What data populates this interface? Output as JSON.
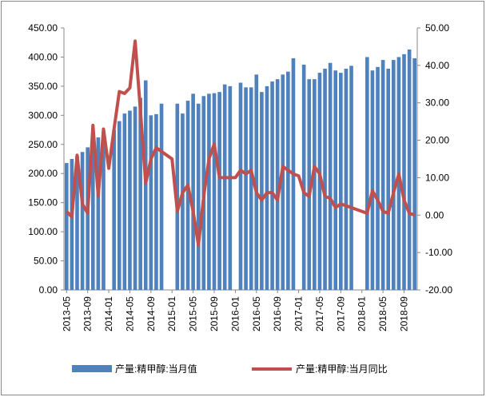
{
  "chart_data": {
    "type": "bar_line",
    "categories": [
      "2013-05",
      null,
      null,
      null,
      "2013-09",
      null,
      null,
      null,
      "2014-01",
      null,
      null,
      null,
      "2014-05",
      null,
      null,
      null,
      "2014-09",
      null,
      null,
      null,
      "2015-01",
      null,
      null,
      null,
      "2015-05",
      null,
      null,
      null,
      "2015-09",
      null,
      null,
      null,
      "2016-01",
      null,
      null,
      null,
      "2016-05",
      null,
      null,
      null,
      "2016-09",
      null,
      null,
      null,
      "2017-01",
      null,
      null,
      null,
      "2017-05",
      null,
      null,
      null,
      "2017-09",
      null,
      null,
      null,
      "2018-01",
      null,
      null,
      null,
      "2018-05",
      null,
      null,
      null,
      "2018-09",
      null,
      null
    ],
    "series": [
      {
        "name": "产量:精甲醇:当月值",
        "color": "#4f81bd",
        "axis": "y",
        "values": [
          218,
          225,
          230,
          237,
          245,
          250,
          262,
          272,
          null,
          275,
          290,
          303,
          308,
          315,
          330,
          360,
          300,
          302,
          320,
          null,
          null,
          320,
          303,
          325,
          337,
          320,
          333,
          337,
          338,
          340,
          353,
          350,
          null,
          356,
          348,
          348,
          370,
          340,
          350,
          358,
          362,
          370,
          375,
          398,
          null,
          387,
          362,
          362,
          373,
          380,
          390,
          377,
          373,
          380,
          385,
          null,
          null,
          400,
          377,
          383,
          395,
          380,
          395,
          400,
          405,
          413,
          398
        ]
      },
      {
        "name": "产量:精甲醇:当月同比",
        "color": "#c0504d",
        "axis": "y2",
        "values": [
          1,
          -0.5,
          16,
          3,
          0.5,
          24,
          5,
          23,
          12.5,
          23,
          33,
          32.5,
          34,
          46.5,
          28,
          8.5,
          15,
          18,
          17,
          16,
          15,
          1,
          6,
          8,
          1,
          -8,
          5,
          15,
          19,
          10,
          10,
          10,
          10,
          12,
          11,
          12,
          6,
          4,
          6,
          6,
          4,
          13,
          12,
          11,
          10.5,
          6,
          5,
          13,
          11,
          5,
          4.5,
          2,
          3,
          2.5,
          2,
          1.5,
          1,
          0.5,
          6.5,
          4,
          1,
          0.5,
          6,
          11,
          4,
          0.5,
          0
        ]
      }
    ],
    "ylim": [
      0,
      450
    ],
    "yticks": [
      {
        "value": 0,
        "label": "0.00"
      },
      {
        "value": 50,
        "label": "50.00"
      },
      {
        "value": 100,
        "label": "100.00"
      },
      {
        "value": 150,
        "label": "150.00"
      },
      {
        "value": 200,
        "label": "200.00"
      },
      {
        "value": 250,
        "label": "250.00"
      },
      {
        "value": 300,
        "label": "300.00"
      },
      {
        "value": 350,
        "label": "350.00"
      },
      {
        "value": 400,
        "label": "400.00"
      },
      {
        "value": 450,
        "label": "450.00"
      }
    ],
    "y2lim": [
      -20,
      50
    ],
    "y2ticks": [
      {
        "value": -20,
        "label": "-20.00"
      },
      {
        "value": -10,
        "label": "-10.00"
      },
      {
        "value": 0,
        "label": "0.00"
      },
      {
        "value": 10,
        "label": "10.00"
      },
      {
        "value": 20,
        "label": "20.00"
      },
      {
        "value": 30,
        "label": "30.00"
      },
      {
        "value": 40,
        "label": "40.00"
      },
      {
        "value": 50,
        "label": "50.00"
      }
    ],
    "legend": "bottom"
  }
}
